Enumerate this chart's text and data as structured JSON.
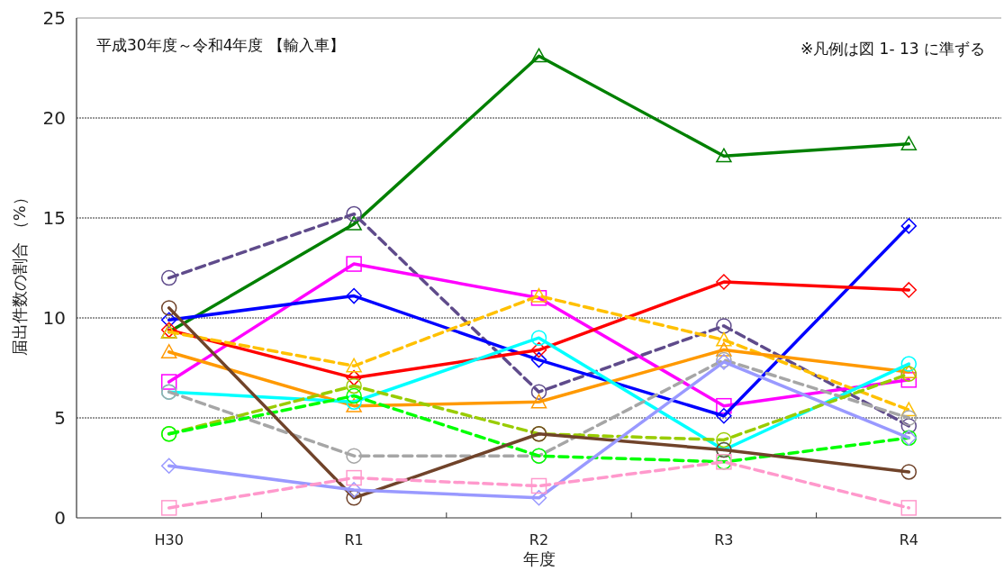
{
  "chart_data": {
    "type": "line",
    "xlabel": "年度",
    "ylabel": "届出件数の割合 （%）",
    "annotations": [
      "平成30年度～令和4年度 【輸入車】",
      "※凡例は図 1- 13 に準ずる"
    ],
    "categories": [
      "H30",
      "R1",
      "R2",
      "R3",
      "R4"
    ],
    "ylim": [
      0,
      25
    ],
    "yticks": [
      0,
      5,
      10,
      15,
      20,
      25
    ],
    "grid": "y",
    "series": [
      {
        "color": "#008000",
        "marker": "triangle",
        "line_style": "solid",
        "values": [
          9.3,
          14.7,
          23.1,
          18.1,
          18.7
        ]
      },
      {
        "color": "#5f4b8b",
        "marker": "circle",
        "line_style": "dashed",
        "values": [
          12.0,
          15.2,
          6.3,
          9.6,
          4.6
        ]
      },
      {
        "color": "#ff00ff",
        "marker": "square",
        "line_style": "solid",
        "values": [
          6.8,
          12.7,
          11.0,
          5.6,
          6.9
        ]
      },
      {
        "color": "#0000ff",
        "marker": "diamond",
        "line_style": "solid",
        "values": [
          9.9,
          11.1,
          7.9,
          5.1,
          14.6
        ]
      },
      {
        "color": "#ff0000",
        "marker": "diamond",
        "line_style": "solid",
        "values": [
          9.4,
          7.0,
          8.4,
          11.8,
          11.4
        ]
      },
      {
        "color": "#ffc000",
        "marker": "triangle",
        "line_style": "dashed",
        "values": [
          9.3,
          7.6,
          11.1,
          8.9,
          5.4
        ]
      },
      {
        "color": "#ff9900",
        "marker": "triangle",
        "line_style": "solid",
        "values": [
          8.3,
          5.6,
          5.8,
          8.4,
          7.3
        ]
      },
      {
        "color": "#00ffff",
        "marker": "circle",
        "line_style": "solid",
        "values": [
          6.3,
          5.8,
          9.0,
          3.4,
          7.7
        ]
      },
      {
        "color": "#a6a6a6",
        "marker": "circle",
        "line_style": "dashed",
        "values": [
          6.3,
          3.1,
          3.1,
          7.9,
          5.0
        ]
      },
      {
        "color": "#99cc00",
        "marker": "circle",
        "line_style": "dashed",
        "values": [
          4.2,
          6.6,
          4.2,
          3.9,
          7.2
        ]
      },
      {
        "color": "#00ff00",
        "marker": "circle",
        "line_style": "dashed",
        "values": [
          4.2,
          6.1,
          3.1,
          2.8,
          4.0
        ]
      },
      {
        "color": "#70432a",
        "marker": "circle",
        "line_style": "solid",
        "values": [
          10.5,
          1.0,
          4.2,
          3.4,
          2.3
        ]
      },
      {
        "color": "#9999ff",
        "marker": "diamond",
        "line_style": "solid",
        "values": [
          2.6,
          1.4,
          1.0,
          7.8,
          4.0
        ]
      },
      {
        "color": "#ff99cc",
        "marker": "square",
        "line_style": "dashed",
        "values": [
          0.5,
          2.0,
          1.6,
          2.8,
          0.5
        ]
      }
    ]
  }
}
